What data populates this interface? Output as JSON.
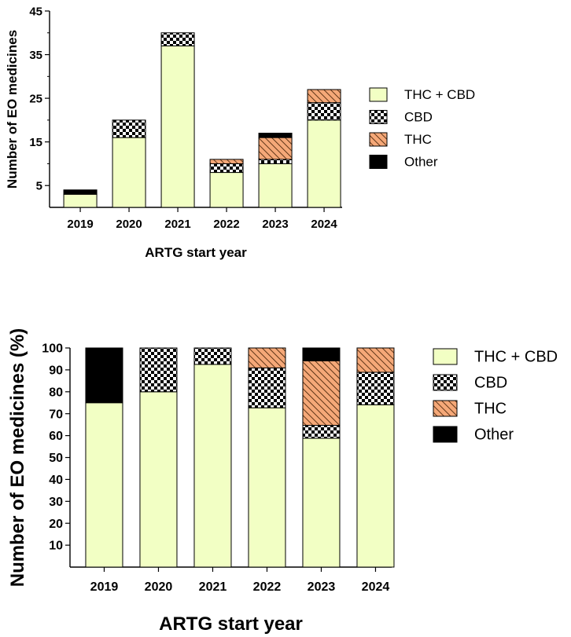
{
  "chart_data": [
    {
      "type": "bar",
      "stacked": true,
      "title": "",
      "xlabel": "ARTG start year",
      "ylabel": "Number of EO medicines",
      "categories": [
        "2019",
        "2020",
        "2021",
        "2022",
        "2023",
        "2024"
      ],
      "ylim": [
        0,
        45
      ],
      "yticks": [
        5,
        15,
        25,
        35,
        45
      ],
      "series": [
        {
          "name": "THC + CBD",
          "values": [
            3,
            16,
            37,
            8,
            10,
            20
          ]
        },
        {
          "name": "CBD",
          "values": [
            0,
            4,
            3,
            2,
            1,
            4
          ]
        },
        {
          "name": "THC",
          "values": [
            0,
            0,
            0,
            1,
            5,
            3
          ]
        },
        {
          "name": "Other",
          "values": [
            1,
            0,
            0,
            0,
            1,
            0
          ]
        }
      ],
      "legend_position": "right"
    },
    {
      "type": "bar",
      "stacked": true,
      "title": "",
      "xlabel": "ARTG start year",
      "ylabel": "Number of EO medicines (%)",
      "categories": [
        "2019",
        "2020",
        "2021",
        "2022",
        "2023",
        "2024"
      ],
      "ylim": [
        0,
        100
      ],
      "yticks": [
        10,
        20,
        30,
        40,
        50,
        60,
        70,
        80,
        90,
        100
      ],
      "series": [
        {
          "name": "THC + CBD",
          "values": [
            75,
            80,
            92.5,
            72.7,
            58.8,
            74.1
          ]
        },
        {
          "name": "CBD",
          "values": [
            0,
            20,
            7.5,
            18.2,
            5.9,
            14.8
          ]
        },
        {
          "name": "THC",
          "values": [
            0,
            0,
            0,
            9.1,
            29.4,
            11.1
          ]
        },
        {
          "name": "Other",
          "values": [
            25,
            0,
            0,
            0,
            5.9,
            0
          ]
        }
      ],
      "legend_position": "right"
    }
  ],
  "colors": {
    "thc_cbd": "#f2ffc4",
    "cbd_fill": "#ffffff",
    "cbd_pattern": "#000000",
    "thc_fill": "#f5a878",
    "thc_pattern": "#3a1a00",
    "other": "#000000"
  }
}
